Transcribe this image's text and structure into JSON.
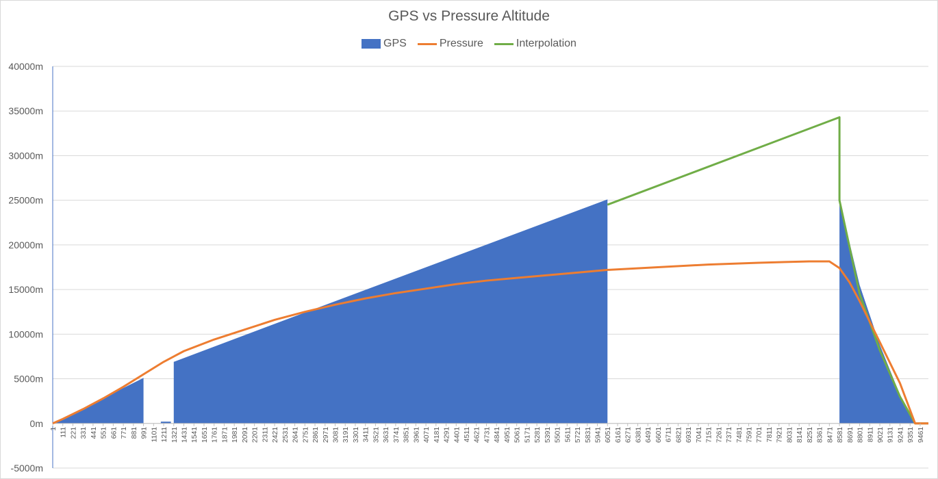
{
  "chart_data": {
    "type": "area",
    "title": "GPS vs Pressure Altitude",
    "xlabel": "",
    "ylabel": "",
    "ylim": [
      -5000,
      40000
    ],
    "y_ticks": [
      "40000m",
      "35000m",
      "30000m",
      "25000m",
      "20000m",
      "15000m",
      "10000m",
      "5000m",
      "0m",
      "-5000m"
    ],
    "x_ticks": [
      "1",
      "111",
      "221",
      "331",
      "441",
      "551",
      "661",
      "771",
      "881",
      "991",
      "1101",
      "1211",
      "1321",
      "1431",
      "1541",
      "1651",
      "1761",
      "1871",
      "1981",
      "2091",
      "2201",
      "2311",
      "2421",
      "2531",
      "2641",
      "2751",
      "2861",
      "2971",
      "3081",
      "3191",
      "3301",
      "3411",
      "3521",
      "3631",
      "3741",
      "3851",
      "3961",
      "4071",
      "4181",
      "4291",
      "4401",
      "4511",
      "4621",
      "4731",
      "4841",
      "4951",
      "5061",
      "5171",
      "5281",
      "5391",
      "5501",
      "5611",
      "5721",
      "5831",
      "5941",
      "6051",
      "6161",
      "6271",
      "6381",
      "6491",
      "6601",
      "6711",
      "6821",
      "6931",
      "7041",
      "7151",
      "7261",
      "7371",
      "7481",
      "7591",
      "7701",
      "7811",
      "7921",
      "8031",
      "8141",
      "8251",
      "8361",
      "8471",
      "8581",
      "8691",
      "8801",
      "8911",
      "9021",
      "9131",
      "9241",
      "9351",
      "9461"
    ],
    "x_range": [
      1,
      9551
    ],
    "grid": true,
    "legend_position": "top",
    "series": [
      {
        "name": "GPS",
        "type": "area",
        "color": "#4472c4",
        "segments": [
          [
            [
              1,
              0
            ],
            [
              991,
              5100
            ]
          ],
          [
            [
              1180,
              200
            ],
            [
              1290,
              200
            ]
          ],
          [
            [
              1321,
              6900
            ],
            [
              2641,
              12000
            ],
            [
              6051,
              25100
            ]
          ],
          [
            [
              8581,
              25000
            ],
            [
              8801,
              15500
            ],
            [
              9021,
              8800
            ],
            [
              9241,
              3200
            ],
            [
              9406,
              0
            ]
          ]
        ]
      },
      {
        "name": "Pressure",
        "type": "line",
        "color": "#ed7d31",
        "points": [
          [
            1,
            0
          ],
          [
            111,
            500
          ],
          [
            331,
            1600
          ],
          [
            551,
            2800
          ],
          [
            771,
            4100
          ],
          [
            991,
            5500
          ],
          [
            1211,
            6900
          ],
          [
            1431,
            8100
          ],
          [
            1761,
            9400
          ],
          [
            2091,
            10500
          ],
          [
            2421,
            11600
          ],
          [
            2751,
            12500
          ],
          [
            3081,
            13300
          ],
          [
            3411,
            14000
          ],
          [
            3741,
            14600
          ],
          [
            4071,
            15100
          ],
          [
            4401,
            15600
          ],
          [
            4731,
            16000
          ],
          [
            5061,
            16300
          ],
          [
            5391,
            16600
          ],
          [
            5721,
            16900
          ],
          [
            6051,
            17200
          ],
          [
            6601,
            17500
          ],
          [
            7151,
            17800
          ],
          [
            7701,
            18000
          ],
          [
            8251,
            18150
          ],
          [
            8471,
            18150
          ],
          [
            8581,
            17400
          ],
          [
            8691,
            15800
          ],
          [
            8801,
            13700
          ],
          [
            9021,
            9100
          ],
          [
            9241,
            4500
          ],
          [
            9406,
            0
          ],
          [
            9551,
            0
          ]
        ]
      },
      {
        "name": "Interpolation",
        "type": "line",
        "color": "#70ad47",
        "points": [
          [
            6051,
            24500
          ],
          [
            8581,
            34300
          ],
          [
            8581,
            25000
          ],
          [
            8801,
            14500
          ],
          [
            9021,
            8200
          ],
          [
            9241,
            3000
          ],
          [
            9406,
            0
          ],
          [
            9551,
            0
          ]
        ]
      }
    ]
  }
}
